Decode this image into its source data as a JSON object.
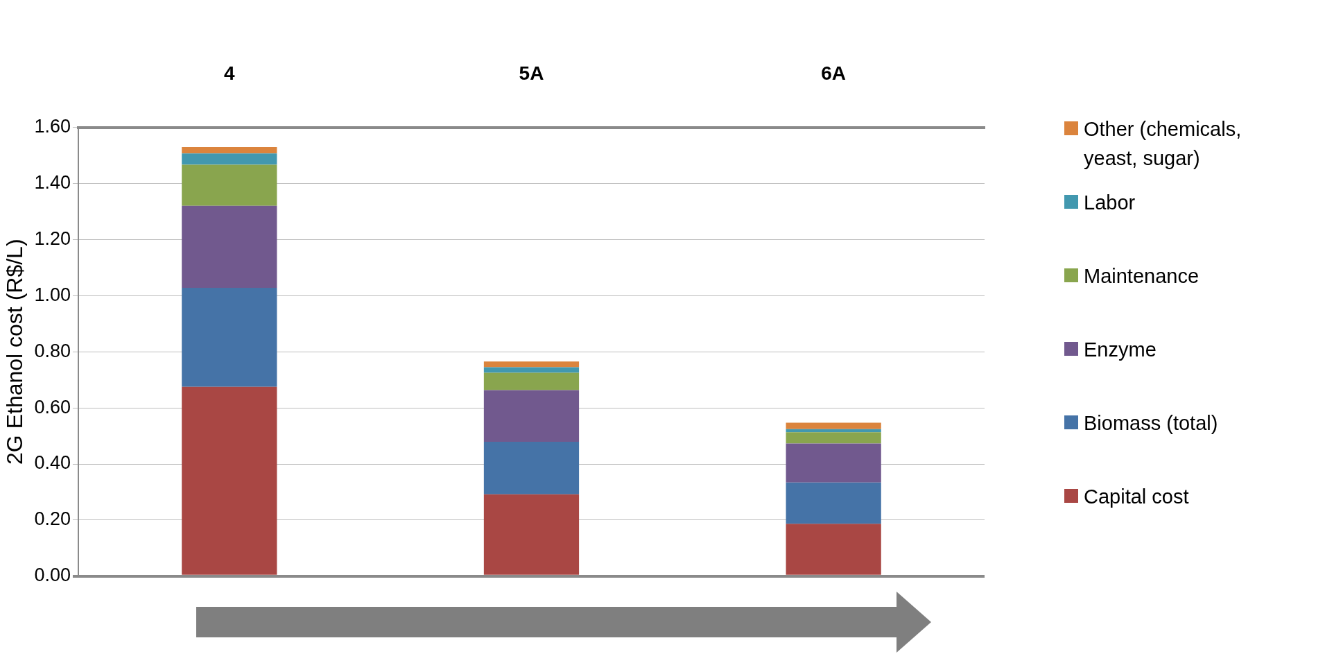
{
  "chart_data": {
    "type": "bar",
    "stacked": true,
    "ylabel": "2G Ethanol cost (R$/L)",
    "categories": [
      "4",
      "5A",
      "6A"
    ],
    "series": [
      {
        "name": "Capital cost",
        "color": "#a94744",
        "values": [
          0.675,
          0.292,
          0.187
        ]
      },
      {
        "name": "Biomass (total)",
        "color": "#4573a7",
        "values": [
          0.353,
          0.187,
          0.147
        ]
      },
      {
        "name": "Enzyme",
        "color": "#71598e",
        "values": [
          0.292,
          0.184,
          0.139
        ]
      },
      {
        "name": "Maintenance",
        "color": "#89a54e",
        "values": [
          0.147,
          0.062,
          0.04
        ]
      },
      {
        "name": "Labor",
        "color": "#4298af",
        "values": [
          0.04,
          0.02,
          0.011
        ]
      },
      {
        "name": "Other (chemicals, yeast, sugar)",
        "color": "#db843d",
        "values": [
          0.023,
          0.02,
          0.023
        ]
      }
    ],
    "ylim": [
      0,
      1.6
    ],
    "yticks": [
      {
        "value": 0,
        "label": "0.00"
      },
      {
        "value": 0.2,
        "label": "0.20"
      },
      {
        "value": 0.4,
        "label": "0.40"
      },
      {
        "value": 0.6,
        "label": "0.60"
      },
      {
        "value": 0.8,
        "label": "0.80"
      },
      {
        "value": 1,
        "label": "1.00"
      },
      {
        "value": 1.2,
        "label": "1.20"
      },
      {
        "value": 1.4,
        "label": "1.40"
      },
      {
        "value": 1.6,
        "label": "1.60"
      }
    ],
    "grid": "y",
    "legend": "right"
  }
}
